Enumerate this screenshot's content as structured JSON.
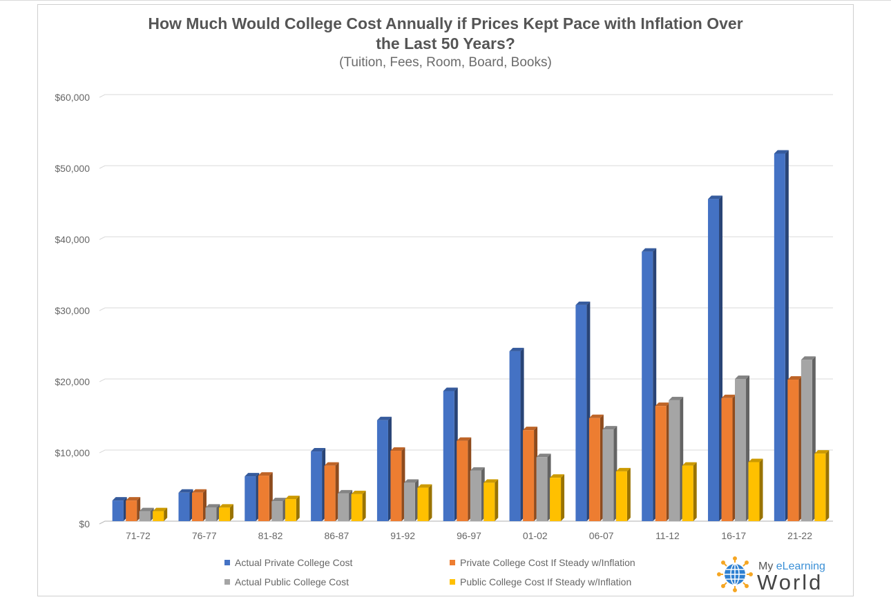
{
  "chart_data": {
    "type": "bar",
    "title": "How Much Would College Cost Annually if Prices Kept Pace with Inflation Over the Last 50 Years?",
    "title_lines": [
      "How Much Would College Cost Annually if Prices Kept Pace with Inflation Over",
      "the Last 50 Years?"
    ],
    "subtitle": "(Tuition, Fees, Room, Board, Books)",
    "categories": [
      "71-72",
      "76-77",
      "81-82",
      "86-87",
      "91-92",
      "96-97",
      "01-02",
      "06-07",
      "11-12",
      "16-17",
      "21-22"
    ],
    "series": [
      {
        "name": "Actual Private College Cost",
        "color": "#4472c4",
        "values": [
          2900,
          4000,
          6300,
          9800,
          14200,
          18300,
          23900,
          30400,
          37900,
          45300,
          51700
        ]
      },
      {
        "name": "Private College Cost If Steady w/Inflation",
        "color": "#ed7d31",
        "values": [
          2900,
          4000,
          6400,
          7800,
          9900,
          11300,
          12800,
          14500,
          16200,
          17300,
          19900
        ]
      },
      {
        "name": "Actual Public College Cost",
        "color": "#a5a5a5",
        "values": [
          1400,
          1900,
          2800,
          3900,
          5400,
          7100,
          9000,
          12900,
          17000,
          20000,
          22700
        ]
      },
      {
        "name": "Public College Cost If Steady w/Inflation",
        "color": "#ffc000",
        "values": [
          1400,
          1900,
          3100,
          3800,
          4700,
          5400,
          6100,
          7000,
          7800,
          8300,
          9500
        ]
      }
    ],
    "ylim": [
      0,
      60000
    ],
    "yticks": [
      0,
      10000,
      20000,
      30000,
      40000,
      50000,
      60000
    ],
    "ytick_labels": [
      "$0",
      "$10,000",
      "$20,000",
      "$30,000",
      "$40,000",
      "$50,000",
      "$60,000"
    ],
    "xlabel": "",
    "ylabel": "",
    "grid": true,
    "legend_position": "bottom",
    "style": "3d-clustered-column"
  },
  "logo": {
    "prefix": "My ",
    "accent": "eLearning",
    "word": "World",
    "accent_color": "#3a8fd6"
  }
}
